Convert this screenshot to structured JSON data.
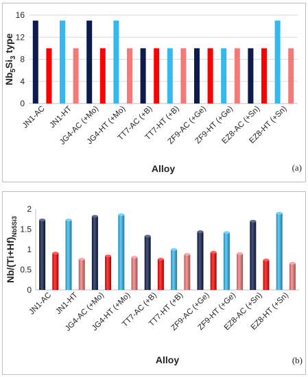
{
  "chart_data": [
    {
      "type": "bar",
      "panel_label": "(a)",
      "xlabel": "Alloy",
      "ylabel_main": "Nb",
      "ylabel_sub1": "5",
      "ylabel_mid": "Si",
      "ylabel_sub2": "3",
      "ylabel_end": " type",
      "ylim": [
        0,
        16
      ],
      "yticks": [
        "0",
        "4",
        "8",
        "12",
        "16"
      ],
      "ytick_values": [
        0,
        4,
        8,
        12,
        16
      ],
      "grid": true,
      "categories": [
        "JN1-AC",
        "JN1-HT",
        "JG4-AC (+Mo)",
        "JG4-HT (+Mo)",
        "TT7-AC (+B)",
        "TT7-HT (+B)",
        "ZF9-AC (+Ge)",
        "ZF9-HT (+Ge)",
        "EZ8-AC (+Sn)",
        "EZ8-HT (+Sn)"
      ],
      "bars": [
        {
          "value": 15,
          "color": "#0d1b4c"
        },
        {
          "value": 10,
          "color": "#ff0000"
        },
        {
          "value": 15,
          "color": "#33b9f0"
        },
        {
          "value": 10,
          "color": "#f47a7a"
        },
        {
          "value": 15,
          "color": "#0d1b4c"
        },
        {
          "value": 10,
          "color": "#ff0000"
        },
        {
          "value": 15,
          "color": "#33b9f0"
        },
        {
          "value": 10,
          "color": "#f47a7a"
        },
        {
          "value": 10,
          "color": "#0d1b4c"
        },
        {
          "value": 10,
          "color": "#ff0000"
        },
        {
          "value": 10,
          "color": "#33b9f0"
        },
        {
          "value": 10,
          "color": "#f47a7a"
        },
        {
          "value": 10,
          "color": "#0d1b4c"
        },
        {
          "value": 10,
          "color": "#ff0000"
        },
        {
          "value": 10,
          "color": "#33b9f0"
        },
        {
          "value": 10,
          "color": "#f47a7a"
        },
        {
          "value": 10,
          "color": "#0d1b4c"
        },
        {
          "value": 10,
          "color": "#ff0000"
        },
        {
          "value": 15,
          "color": "#33b9f0"
        },
        {
          "value": 10,
          "color": "#f47a7a"
        }
      ]
    },
    {
      "type": "bar",
      "panel_label": "(b)",
      "xlabel": "Alloy",
      "ylabel_main": "Nb/(Ti+Hf)",
      "ylabel_sub": "Nb5Si3",
      "ylim": [
        0,
        2
      ],
      "yticks": [
        "0",
        "0.5",
        "1",
        "1.5",
        "2"
      ],
      "ytick_values": [
        0,
        0.5,
        1,
        1.5,
        2
      ],
      "grid": false,
      "style": "3d-cylinder",
      "categories": [
        "JN1-AC",
        "JN1-HT",
        "JG4-AC (+Mo)",
        "JG4-HT (+Mo)",
        "TT7-AC (+B)",
        "TT7-HT (+B)",
        "ZF9-AC (+Ge)",
        "ZF9-HT (+Ge)",
        "EZ8-AC (+Sn)",
        "EZ8-HT (+Sn)"
      ],
      "bars": [
        {
          "value": 1.73,
          "color": "#0d1b4c"
        },
        {
          "value": 0.91,
          "color": "#ff0000"
        },
        {
          "value": 1.73,
          "color": "#33b9f0"
        },
        {
          "value": 0.76,
          "color": "#f47a7a"
        },
        {
          "value": 1.82,
          "color": "#0d1b4c"
        },
        {
          "value": 0.84,
          "color": "#ff0000"
        },
        {
          "value": 1.86,
          "color": "#33b9f0"
        },
        {
          "value": 0.81,
          "color": "#f47a7a"
        },
        {
          "value": 1.33,
          "color": "#0d1b4c"
        },
        {
          "value": 0.76,
          "color": "#ff0000"
        },
        {
          "value": 1.0,
          "color": "#33b9f0"
        },
        {
          "value": 0.88,
          "color": "#f47a7a"
        },
        {
          "value": 1.44,
          "color": "#0d1b4c"
        },
        {
          "value": 0.93,
          "color": "#ff0000"
        },
        {
          "value": 1.42,
          "color": "#33b9f0"
        },
        {
          "value": 0.9,
          "color": "#f47a7a"
        },
        {
          "value": 1.7,
          "color": "#0d1b4c"
        },
        {
          "value": 0.74,
          "color": "#ff0000"
        },
        {
          "value": 1.9,
          "color": "#33b9f0"
        },
        {
          "value": 0.66,
          "color": "#f47a7a"
        }
      ]
    }
  ]
}
